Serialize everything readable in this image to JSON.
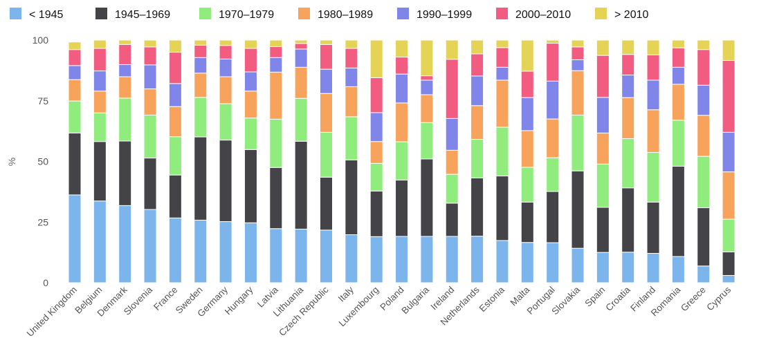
{
  "chart_data": {
    "type": "bar",
    "stacked": true,
    "ylabel": "%",
    "ylim": [
      0,
      100
    ],
    "yticks": [
      0,
      25,
      50,
      75,
      100
    ],
    "legend_position": "top",
    "grid": false,
    "categories": [
      "United Kingdom",
      "Belgium",
      "Denmark",
      "Slovenia",
      "France",
      "Sweden",
      "Germany",
      "Hungary",
      "Latvia",
      "Lithuania",
      "Czech Republic",
      "Italy",
      "Luxembourg",
      "Poland",
      "Bulgaria",
      "Ireland",
      "Netherlands",
      "Estonia",
      "Malta",
      "Portugal",
      "Slovakia",
      "Spain",
      "Croatia",
      "Finland",
      "Romania",
      "Greece",
      "Cyprus"
    ],
    "series": [
      {
        "name": "< 1945",
        "color": "#7cb5ec",
        "values": [
          36.2,
          33.7,
          31.8,
          30.2,
          26.7,
          25.8,
          25.2,
          24.7,
          22.3,
          22.1,
          21.7,
          19.8,
          19.0,
          19.1,
          19.1,
          19.1,
          19.2,
          17.4,
          16.6,
          16.5,
          14.2,
          12.5,
          12.6,
          12.1,
          10.8,
          6.9,
          3.0
        ]
      },
      {
        "name": "1945–1969",
        "color": "#434348",
        "values": [
          25.5,
          24.5,
          26.6,
          21.2,
          17.7,
          34.3,
          33.6,
          30.2,
          25.2,
          36.2,
          21.8,
          30.8,
          18.8,
          23.2,
          31.9,
          13.7,
          24.0,
          26.6,
          16.6,
          21.1,
          31.9,
          18.6,
          26.5,
          21.1,
          37.2,
          24.0,
          9.7
        ]
      },
      {
        "name": "1970–1979",
        "color": "#90ed7d",
        "values": [
          13.2,
          11.8,
          17.7,
          17.7,
          15.8,
          16.3,
          15.0,
          13.0,
          19.9,
          17.7,
          18.5,
          17.8,
          11.4,
          15.8,
          15.0,
          11.9,
          15.9,
          20.1,
          14.4,
          13.9,
          23.0,
          17.8,
          20.3,
          20.5,
          19.0,
          21.2,
          13.5
        ]
      },
      {
        "name": "1980–1989",
        "color": "#f7a35c",
        "values": [
          8.8,
          9.0,
          8.8,
          10.8,
          12.4,
          10.0,
          11.1,
          11.1,
          19.4,
          12.8,
          16.0,
          12.4,
          9.0,
          16.0,
          11.5,
          9.9,
          13.9,
          19.4,
          15.1,
          16.0,
          18.3,
          12.8,
          16.9,
          17.6,
          14.8,
          16.9,
          19.5
        ]
      },
      {
        "name": "1990–1999",
        "color": "#8085e9",
        "values": [
          5.8,
          8.3,
          5.0,
          9.9,
          9.5,
          6.4,
          7.3,
          7.9,
          6.0,
          7.5,
          10.0,
          7.7,
          11.9,
          11.9,
          6.0,
          13.1,
          12.2,
          5.3,
          13.6,
          15.6,
          4.5,
          14.7,
          9.3,
          12.2,
          7.0,
          12.4,
          16.3
        ]
      },
      {
        "name": "2000–2010",
        "color": "#f15c80",
        "values": [
          6.6,
          9.3,
          8.3,
          7.4,
          12.9,
          5.1,
          5.6,
          9.7,
          4.5,
          2.3,
          10.2,
          8.1,
          14.4,
          7.0,
          1.8,
          24.4,
          9.1,
          8.1,
          10.9,
          15.6,
          5.3,
          17.3,
          8.5,
          10.4,
          8.0,
          14.7,
          29.6
        ]
      },
      {
        "name": "> 2010",
        "color": "#e4d354",
        "values": [
          3.1,
          3.4,
          1.8,
          2.8,
          5.0,
          2.1,
          2.2,
          3.4,
          2.7,
          1.4,
          1.8,
          3.4,
          15.5,
          7.0,
          14.7,
          7.9,
          5.7,
          3.1,
          12.8,
          1.3,
          2.8,
          6.3,
          5.9,
          6.1,
          3.2,
          3.9,
          8.4
        ]
      }
    ]
  }
}
